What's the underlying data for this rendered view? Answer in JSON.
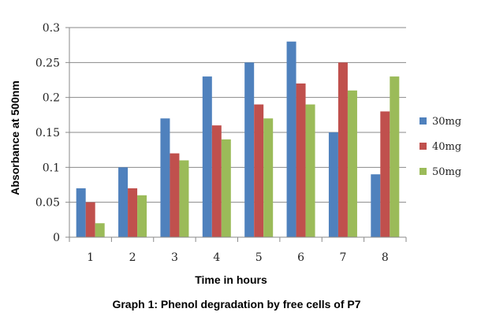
{
  "chart_data": {
    "type": "bar",
    "title": "Graph 1: Phenol degradation by free cells of P7",
    "xlabel": "Time in hours",
    "ylabel": "Absorbance at 500nm",
    "categories": [
      "1",
      "2",
      "3",
      "4",
      "5",
      "6",
      "7",
      "8"
    ],
    "ylim": [
      0,
      0.3
    ],
    "yticks": [
      "0",
      "0.05",
      "0.1",
      "0.15",
      "0.2",
      "0.25",
      "0.3"
    ],
    "grid": true,
    "legend_position": "right",
    "series": [
      {
        "name": "30mg",
        "color": "#4F81BD",
        "values": [
          0.07,
          0.1,
          0.17,
          0.23,
          0.25,
          0.28,
          0.15,
          0.09
        ]
      },
      {
        "name": "40mg",
        "color": "#C0504D",
        "values": [
          0.05,
          0.07,
          0.12,
          0.16,
          0.19,
          0.22,
          0.25,
          0.18
        ]
      },
      {
        "name": "50mg",
        "color": "#9BBB59",
        "values": [
          0.02,
          0.06,
          0.11,
          0.14,
          0.17,
          0.19,
          0.21,
          0.23
        ]
      }
    ]
  }
}
